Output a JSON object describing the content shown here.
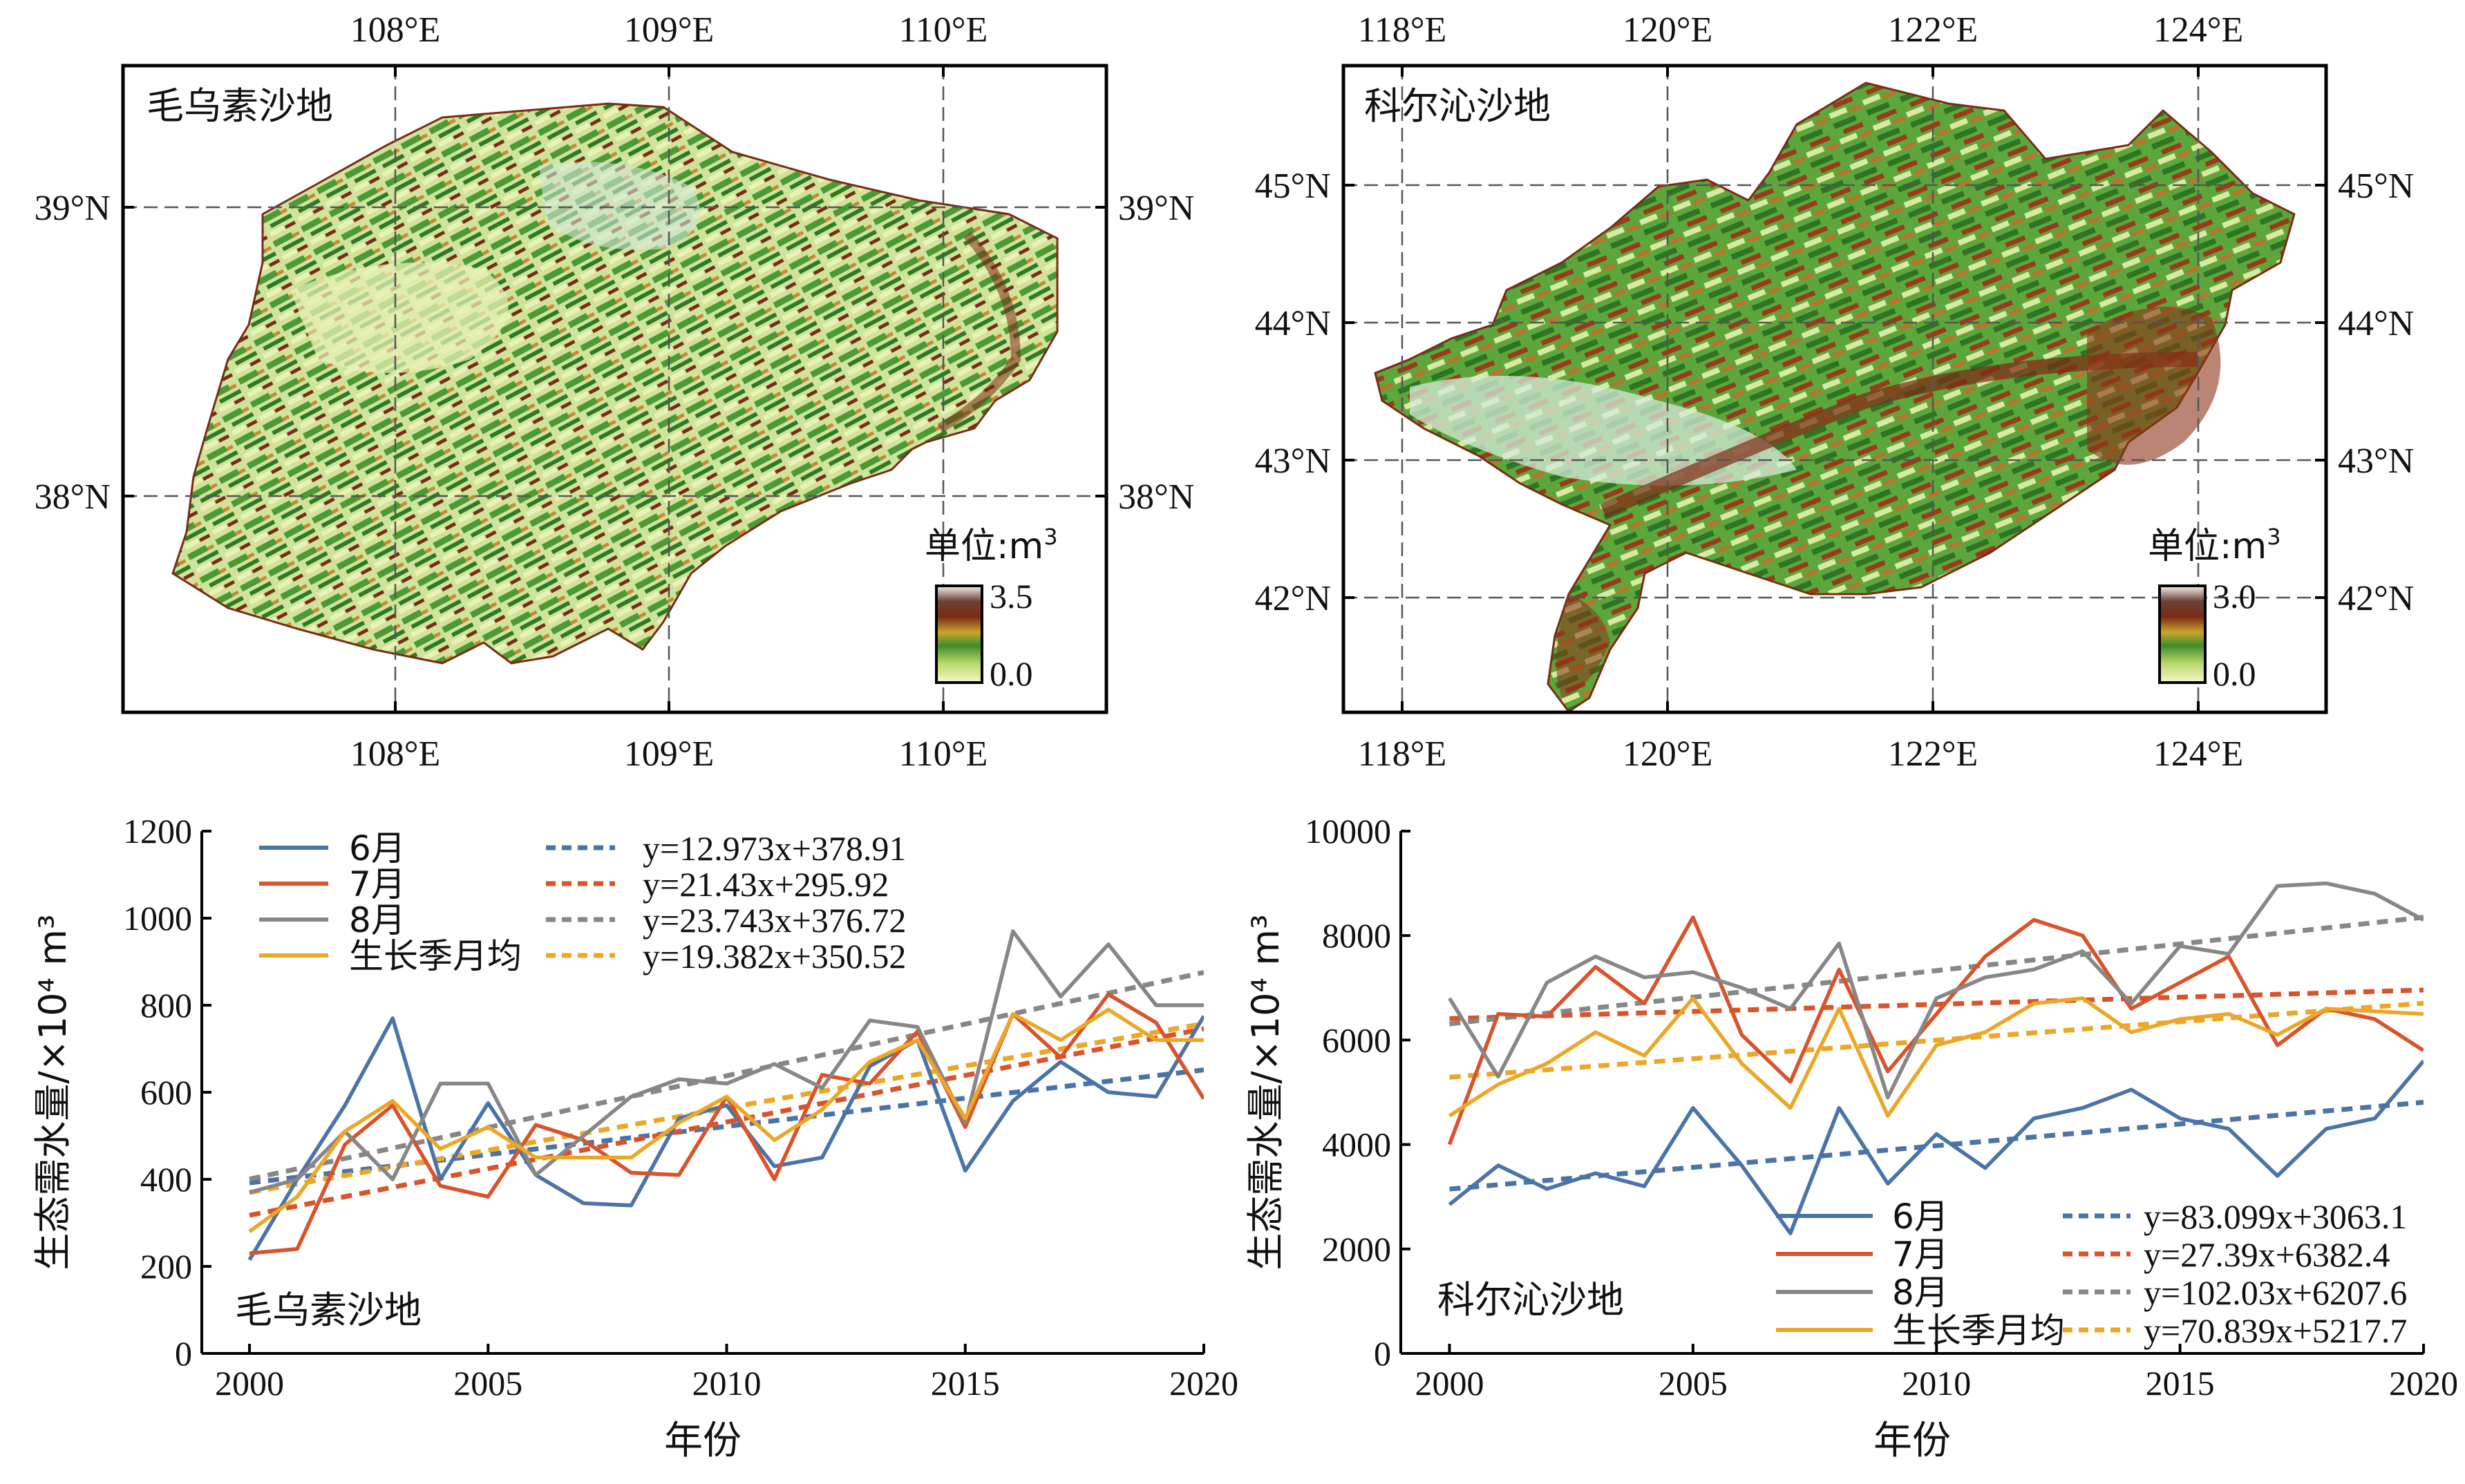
{
  "maps": [
    {
      "region_label": "毛乌素沙地",
      "x_ticks": [
        "108°E",
        "109°E",
        "110°E"
      ],
      "y_ticks": [
        "39°N",
        "38°N"
      ],
      "legend": {
        "unit_label": "单位:m",
        "unit_sup": "3",
        "max_label": "3.5",
        "min_label": "0.0"
      }
    },
    {
      "region_label": "科尔沁沙地",
      "x_ticks": [
        "118°E",
        "120°E",
        "122°E",
        "124°E"
      ],
      "y_ticks": [
        "45°N",
        "44°N",
        "43°N",
        "42°N"
      ],
      "legend": {
        "unit_label": "单位:m",
        "unit_sup": "3",
        "max_label": "3.0",
        "min_label": "0.0"
      }
    }
  ],
  "colors": {
    "jun": "#4a74a8",
    "jul": "#d9532b",
    "aug": "#878787",
    "avg": "#eca728",
    "map_green": "#4c9a35",
    "map_pale": "#e9f2b6",
    "map_brown": "#7b2a16"
  },
  "chart_data": [
    {
      "type": "line",
      "panel_label": "毛乌素沙地",
      "xlabel": "年份",
      "ylabel": "生态需水量/×10⁴ m³",
      "xlim": [
        1999,
        2020
      ],
      "ylim": [
        0,
        1200
      ],
      "x_ticks": [
        2000,
        2005,
        2010,
        2015,
        2020
      ],
      "y_ticks": [
        0,
        200,
        400,
        600,
        800,
        1000,
        1200
      ],
      "x": [
        2000,
        2001,
        2002,
        2003,
        2004,
        2005,
        2006,
        2007,
        2008,
        2009,
        2010,
        2011,
        2012,
        2013,
        2014,
        2015,
        2016,
        2017,
        2018,
        2019,
        2020
      ],
      "legend_position": "top",
      "series": [
        {
          "name": "6月",
          "key": "jun",
          "values": [
            215,
            400,
            570,
            770,
            400,
            575,
            410,
            345,
            340,
            540,
            570,
            430,
            450,
            660,
            720,
            420,
            580,
            670,
            600,
            590,
            775
          ]
        },
        {
          "name": "7月",
          "key": "jul",
          "values": [
            230,
            240,
            480,
            570,
            385,
            360,
            525,
            490,
            415,
            410,
            590,
            400,
            640,
            620,
            740,
            520,
            780,
            680,
            825,
            760,
            585
          ]
        },
        {
          "name": "8月",
          "key": "aug",
          "values": [
            370,
            400,
            510,
            400,
            620,
            620,
            410,
            500,
            590,
            630,
            620,
            665,
            610,
            765,
            750,
            530,
            970,
            820,
            940,
            800,
            800
          ]
        },
        {
          "name": "生长季月均",
          "key": "avg",
          "values": [
            280,
            360,
            510,
            580,
            470,
            520,
            450,
            450,
            450,
            530,
            590,
            490,
            560,
            670,
            720,
            540,
            780,
            720,
            790,
            720,
            720
          ]
        }
      ],
      "trends": [
        {
          "key": "jun",
          "equation": "y=12.973x+378.91",
          "slope": 12.973,
          "intercept": 378.91
        },
        {
          "key": "jul",
          "equation": "y=21.43x+295.92",
          "slope": 21.43,
          "intercept": 295.92
        },
        {
          "key": "aug",
          "equation": "y=23.743x+376.72",
          "slope": 23.743,
          "intercept": 376.72
        },
        {
          "key": "avg",
          "equation": "y=19.382x+350.52",
          "slope": 19.382,
          "intercept": 350.52
        }
      ]
    },
    {
      "type": "line",
      "panel_label": "科尔沁沙地",
      "xlabel": "年份",
      "ylabel": "生态需水量/×10⁴ m³",
      "xlim": [
        1999,
        2020
      ],
      "ylim": [
        0,
        10000
      ],
      "x_ticks": [
        2000,
        2005,
        2010,
        2015,
        2020
      ],
      "y_ticks": [
        0,
        2000,
        4000,
        6000,
        8000,
        10000
      ],
      "x": [
        2000,
        2001,
        2002,
        2003,
        2004,
        2005,
        2006,
        2007,
        2008,
        2009,
        2010,
        2011,
        2012,
        2013,
        2014,
        2015,
        2016,
        2017,
        2018,
        2019,
        2020
      ],
      "legend_position": "bottom",
      "series": [
        {
          "name": "6月",
          "key": "jun",
          "values": [
            2850,
            3600,
            3150,
            3450,
            3200,
            4700,
            3600,
            2300,
            4700,
            3250,
            4200,
            3550,
            4500,
            4700,
            5050,
            4500,
            4300,
            3400,
            4300,
            4500,
            5600
          ]
        },
        {
          "name": "7月",
          "key": "jul",
          "values": [
            4000,
            6500,
            6450,
            7400,
            6700,
            8350,
            6100,
            5200,
            7350,
            5400,
            6500,
            7600,
            8300,
            8000,
            6600,
            7100,
            7600,
            5900,
            6600,
            6400,
            5800
          ]
        },
        {
          "name": "8月",
          "key": "aug",
          "values": [
            6800,
            5300,
            7100,
            7600,
            7200,
            7300,
            7000,
            6600,
            7850,
            4900,
            6800,
            7200,
            7350,
            7700,
            6700,
            7800,
            7650,
            8950,
            9000,
            8800,
            8300
          ]
        },
        {
          "name": "生长季月均",
          "key": "avg",
          "values": [
            4550,
            5150,
            5550,
            6150,
            5700,
            6800,
            5550,
            4700,
            6600,
            4550,
            5900,
            6150,
            6700,
            6800,
            6150,
            6400,
            6500,
            6100,
            6600,
            6550,
            6500
          ]
        }
      ],
      "trends": [
        {
          "key": "jun",
          "equation": "y=83.099x+3063.1",
          "slope": 83.099,
          "intercept": 3063.1
        },
        {
          "key": "jul",
          "equation": "y=27.39x+6382.4",
          "slope": 27.39,
          "intercept": 6382.4
        },
        {
          "key": "aug",
          "equation": "y=102.03x+6207.6",
          "slope": 102.03,
          "intercept": 6207.6
        },
        {
          "key": "avg",
          "equation": "y=70.839x+5217.7",
          "slope": 70.839,
          "intercept": 5217.7
        }
      ]
    }
  ]
}
